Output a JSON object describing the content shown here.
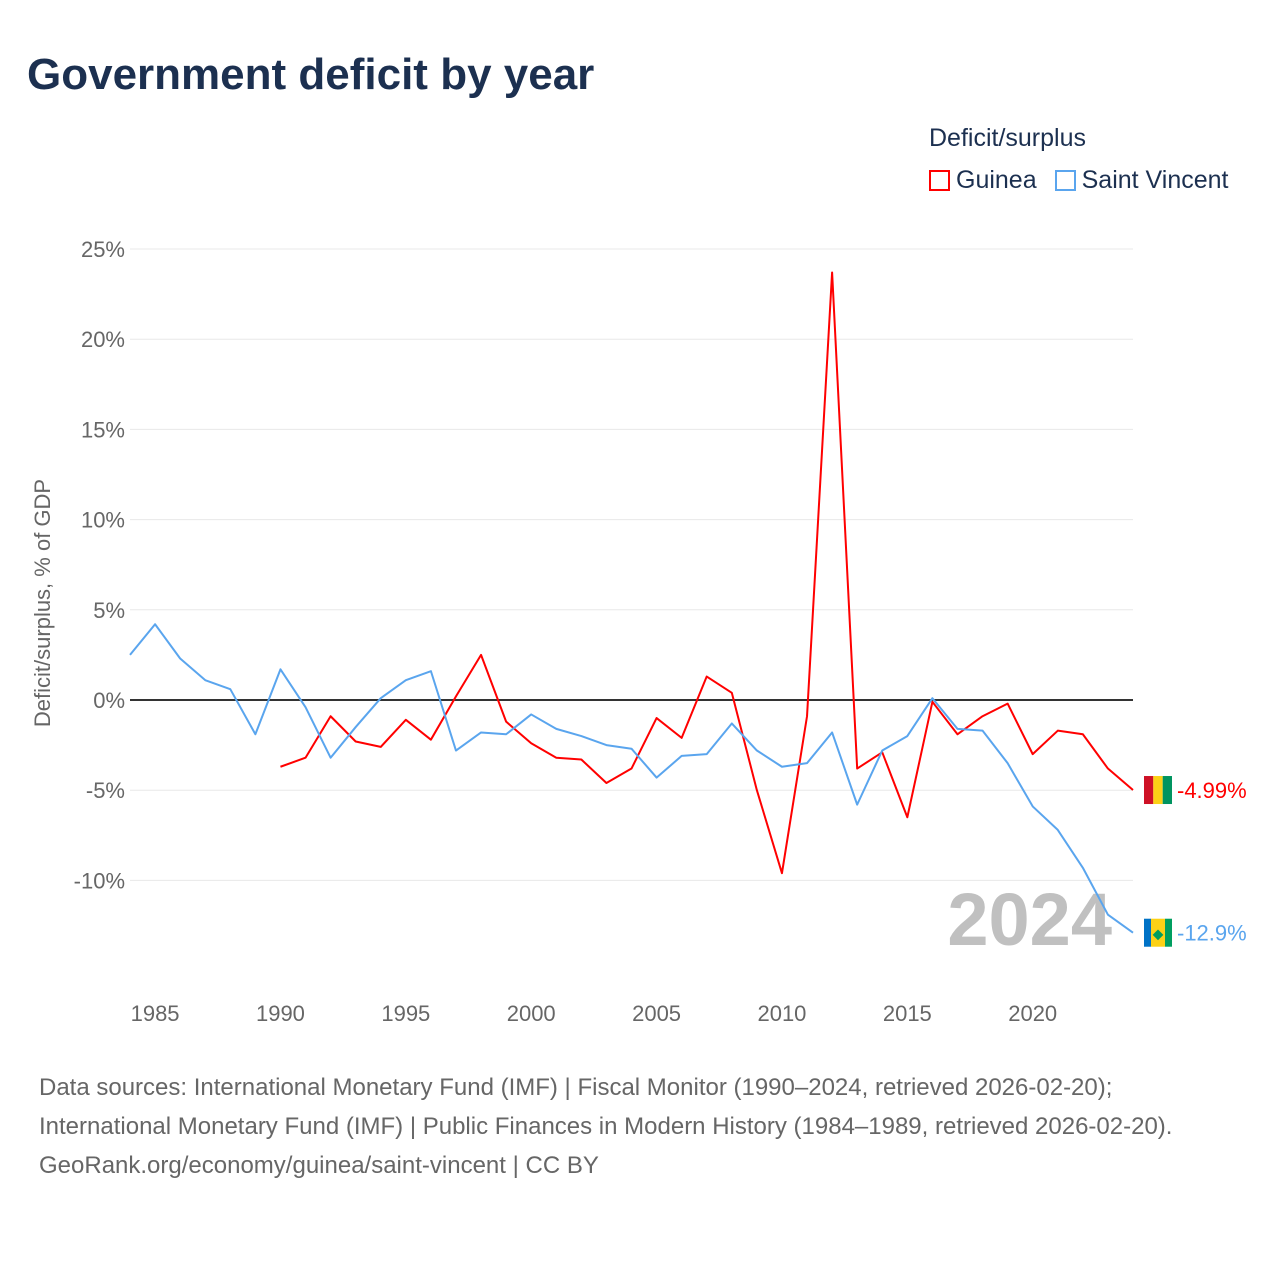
{
  "title": "Government deficit by year",
  "legend": {
    "title": "Deficit/surplus",
    "items": [
      {
        "label": "Guinea",
        "color": "#ff0000"
      },
      {
        "label": "Saint Vincent",
        "color": "#5aa5ee"
      }
    ]
  },
  "chart_data": {
    "type": "line",
    "title": "Government deficit by year",
    "xlabel": "",
    "ylabel": "Deficit/surplus, % of GDP",
    "xlim": [
      1984,
      2024
    ],
    "ylim": [
      -15,
      25
    ],
    "yticks": [
      25,
      20,
      15,
      10,
      5,
      0,
      -5,
      -10
    ],
    "ytick_labels": [
      "25%",
      "20%",
      "15%",
      "10%",
      "5%",
      "0%",
      "-5%",
      "-10%"
    ],
    "xticks": [
      1985,
      1990,
      1995,
      2000,
      2005,
      2010,
      2015,
      2020
    ],
    "xtick_labels": [
      "1985",
      "1990",
      "1995",
      "2000",
      "2005",
      "2010",
      "2015",
      "2020"
    ],
    "grid": true,
    "legend_position": "top-right",
    "year_watermark": "2024",
    "series": [
      {
        "name": "Guinea",
        "color": "#ff0000",
        "end_label": "-4.99%",
        "x": [
          1990,
          1991,
          1992,
          1993,
          1994,
          1995,
          1996,
          1997,
          1998,
          1999,
          2000,
          2001,
          2002,
          2003,
          2004,
          2005,
          2006,
          2007,
          2008,
          2009,
          2010,
          2011,
          2012,
          2013,
          2014,
          2015,
          2016,
          2017,
          2018,
          2019,
          2020,
          2021,
          2022,
          2023,
          2024
        ],
        "values": [
          -3.7,
          -3.2,
          -0.9,
          -2.3,
          -2.6,
          -1.1,
          -2.2,
          0.2,
          2.5,
          -1.2,
          -2.4,
          -3.2,
          -3.3,
          -4.6,
          -3.8,
          -1.0,
          -2.1,
          1.3,
          0.4,
          -5.0,
          -9.6,
          -0.9,
          23.7,
          -3.8,
          -2.9,
          -6.5,
          -0.1,
          -1.9,
          -0.9,
          -0.2,
          -3.0,
          -1.7,
          -1.9,
          -3.8,
          -4.99
        ]
      },
      {
        "name": "Saint Vincent",
        "color": "#5aa5ee",
        "end_label": "-12.9%",
        "x": [
          1984,
          1985,
          1986,
          1987,
          1988,
          1989,
          1990,
          1991,
          1992,
          1993,
          1994,
          1995,
          1996,
          1997,
          1998,
          1999,
          2000,
          2001,
          2002,
          2003,
          2004,
          2005,
          2006,
          2007,
          2008,
          2009,
          2010,
          2011,
          2012,
          2013,
          2014,
          2015,
          2016,
          2017,
          2018,
          2019,
          2020,
          2021,
          2022,
          2023,
          2024
        ],
        "values": [
          2.5,
          4.2,
          2.3,
          1.1,
          0.6,
          -1.9,
          1.7,
          -0.4,
          -3.2,
          -1.5,
          0.1,
          1.1,
          1.6,
          -2.8,
          -1.8,
          -1.9,
          -0.8,
          -1.6,
          -2.0,
          -2.5,
          -2.7,
          -4.3,
          -3.1,
          -3.0,
          -1.3,
          -2.8,
          -3.7,
          -3.5,
          -1.8,
          -5.8,
          -2.8,
          -2.0,
          0.1,
          -1.6,
          -1.7,
          -3.5,
          -5.9,
          -7.2,
          -9.3,
          -11.9,
          -12.9
        ]
      }
    ]
  },
  "sources": {
    "line1": "Data sources: International Monetary Fund (IMF) | Fiscal Monitor (1990–2024, retrieved 2026-02-20); International Monetary Fund (IMF) | Public Finances in Modern History (1984–1989, retrieved 2026-02-20).",
    "line2": "GeoRank.org/economy/guinea/saint-vincent | CC BY"
  }
}
